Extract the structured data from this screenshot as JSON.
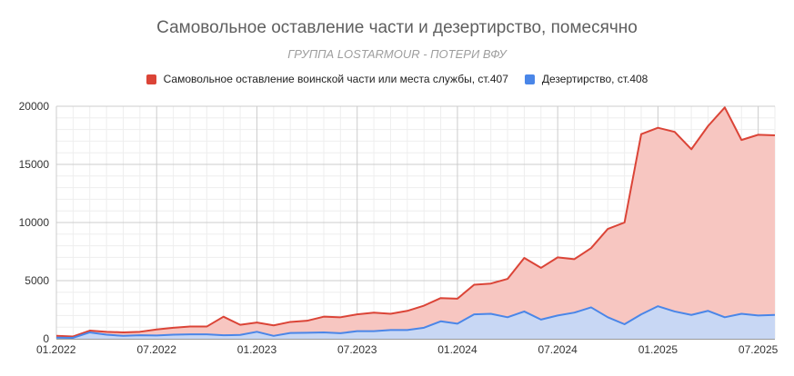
{
  "chart_data": {
    "type": "area",
    "title": "Самовольное оставление части и дезертирство, помесячно",
    "subtitle": "ГРУППА LOSTARMOUR - ПОТЕРИ ВФУ",
    "legend_position": "top",
    "grid": true,
    "x": [
      "01.2022",
      "02.2022",
      "03.2022",
      "04.2022",
      "05.2022",
      "06.2022",
      "07.2022",
      "08.2022",
      "09.2022",
      "10.2022",
      "11.2022",
      "12.2022",
      "01.2023",
      "02.2023",
      "03.2023",
      "04.2023",
      "05.2023",
      "06.2023",
      "07.2023",
      "08.2023",
      "09.2023",
      "10.2023",
      "11.2023",
      "12.2023",
      "01.2024",
      "02.2024",
      "03.2024",
      "04.2024",
      "05.2024",
      "06.2024",
      "07.2024",
      "08.2024",
      "09.2024",
      "10.2024",
      "11.2024",
      "12.2024",
      "01.2025",
      "02.2025",
      "03.2025",
      "04.2025",
      "05.2025",
      "06.2025",
      "07.2025",
      "08.2025"
    ],
    "x_tick_labels": [
      "01.2022",
      "07.2022",
      "01.2023",
      "07.2023",
      "01.2024",
      "07.2024",
      "01.2025",
      "07.2025"
    ],
    "ylim": [
      0,
      20000
    ],
    "y_ticks": [
      "0",
      "5000",
      "10000",
      "15000",
      "20000"
    ],
    "series": [
      {
        "name": "Самовольное оставление воинской части или места службы, ст.407",
        "color": "#db4437",
        "fill": "#f7c6c1",
        "values": [
          250,
          200,
          700,
          600,
          550,
          600,
          800,
          950,
          1050,
          1050,
          1900,
          1200,
          1400,
          1150,
          1450,
          1550,
          1900,
          1850,
          2100,
          2250,
          2150,
          2400,
          2850,
          3500,
          3450,
          4650,
          4750,
          5150,
          6950,
          6100,
          7000,
          6850,
          7800,
          9450,
          10000,
          17600,
          18150,
          17800,
          16300,
          18300,
          19900,
          17100,
          17550,
          17500
        ]
      },
      {
        "name": "Дезертирство, ст.408",
        "color": "#4a86e8",
        "fill": "#c5d8f7",
        "values": [
          100,
          80,
          550,
          350,
          250,
          300,
          280,
          350,
          380,
          380,
          300,
          330,
          600,
          250,
          500,
          520,
          550,
          480,
          650,
          650,
          750,
          750,
          950,
          1500,
          1300,
          2100,
          2150,
          1850,
          2350,
          1650,
          2000,
          2250,
          2700,
          1850,
          1250,
          2100,
          2800,
          2350,
          2050,
          2400,
          1850,
          2150,
          2000,
          2050
        ]
      }
    ]
  }
}
